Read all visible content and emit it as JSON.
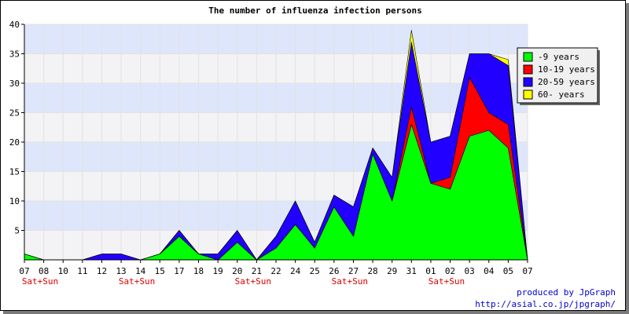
{
  "chart_data": {
    "type": "area",
    "title": "The number of influenza infection persons",
    "xlabel": "",
    "ylabel": "",
    "ylim": [
      0,
      40
    ],
    "yticks": [
      5,
      10,
      15,
      20,
      25,
      30,
      35,
      40
    ],
    "grid": true,
    "stacked": true,
    "legend_position": "top-right",
    "categories": [
      "07",
      "08",
      "10",
      "11",
      "12",
      "13",
      "14",
      "15",
      "17",
      "18",
      "19",
      "20",
      "21",
      "22",
      "24",
      "25",
      "26",
      "27",
      "28",
      "29",
      "31",
      "01",
      "02",
      "03",
      "04",
      "05",
      "07"
    ],
    "weekend_label": "Sat+Sun",
    "weekend_categories": [
      "07",
      "13",
      "20",
      "26",
      "01"
    ],
    "series": [
      {
        "name": "-9 years",
        "color": "#00ff00",
        "values": [
          1,
          0,
          0,
          0,
          0,
          0,
          0,
          1,
          4,
          1,
          0,
          3,
          0,
          2,
          6,
          2,
          9,
          4,
          18,
          10,
          23,
          13,
          12,
          21,
          22,
          19,
          0
        ]
      },
      {
        "name": "10-19 years",
        "color": "#ff0000",
        "values": [
          0,
          0,
          0,
          0,
          0,
          0,
          0,
          0,
          0,
          0,
          0,
          0,
          0,
          0,
          0,
          0,
          0,
          0,
          0,
          0,
          3,
          0,
          2,
          10,
          3,
          4,
          0
        ]
      },
      {
        "name": "20-59 years",
        "color": "#2200ff",
        "values": [
          0,
          0,
          0,
          0,
          1,
          1,
          0,
          0,
          1,
          0,
          1,
          2,
          0,
          2,
          4,
          1,
          2,
          5,
          1,
          4,
          11,
          7,
          7,
          4,
          10,
          10,
          0
        ]
      },
      {
        "name": "60- years",
        "color": "#ffff00",
        "values": [
          0,
          0,
          0,
          0,
          0,
          0,
          0,
          0,
          0,
          0,
          0,
          0,
          0,
          0,
          0,
          0,
          0,
          0,
          0,
          0,
          2,
          0,
          0,
          0,
          0,
          1,
          0
        ]
      }
    ]
  },
  "footer": {
    "line1": "produced by JpGraph",
    "line2": "http://asial.co.jp/jpgraph/"
  }
}
